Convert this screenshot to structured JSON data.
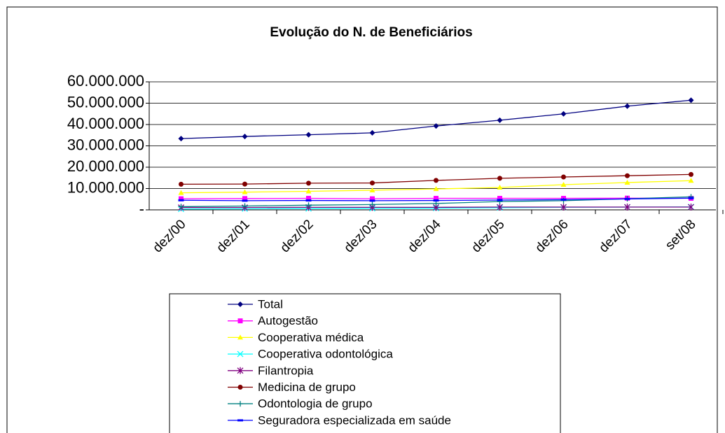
{
  "chart_data": {
    "type": "line",
    "title": "Evolução do N. de Beneficiários",
    "categories": [
      "dez/00",
      "dez/01",
      "dez/02",
      "dez/03",
      "dez/04",
      "dez/05",
      "dez/06",
      "dez/07",
      "set/08"
    ],
    "ylim": [
      0,
      60000000
    ],
    "yticks": [
      {
        "value": 0,
        "label": "-"
      },
      {
        "value": 10000000,
        "label": "10.000.000"
      },
      {
        "value": 20000000,
        "label": "20.000.000"
      },
      {
        "value": 30000000,
        "label": "30.000.000"
      },
      {
        "value": 40000000,
        "label": "40.000.000"
      },
      {
        "value": 50000000,
        "label": "50.000.000"
      },
      {
        "value": 60000000,
        "label": "60.000.000"
      }
    ],
    "grid": true,
    "series": [
      {
        "name": "Total",
        "color": "#000080",
        "marker": "diamond",
        "values": [
          33400000,
          34400000,
          35200000,
          36100000,
          39300000,
          42000000,
          45000000,
          48600000,
          51400000
        ]
      },
      {
        "name": "Autogestão",
        "color": "#ff00ff",
        "marker": "square",
        "values": [
          5200000,
          5300000,
          5400000,
          5200000,
          5400000,
          5400000,
          5400000,
          5500000,
          5400000
        ]
      },
      {
        "name": "Cooperativa médica",
        "color": "#ffff00",
        "marker": "triangle",
        "values": [
          8000000,
          8300000,
          8700000,
          9200000,
          9800000,
          10500000,
          11800000,
          12800000,
          13700000
        ]
      },
      {
        "name": "Cooperativa odontológica",
        "color": "#00ffff",
        "marker": "x",
        "values": [
          400000,
          500000,
          600000,
          700000,
          800000,
          1000000,
          1200000,
          1300000,
          1400000
        ]
      },
      {
        "name": "Filantropia",
        "color": "#800080",
        "marker": "star",
        "values": [
          1100000,
          1100000,
          1200000,
          1200000,
          1200000,
          1300000,
          1300000,
          1300000,
          1300000
        ]
      },
      {
        "name": "Medicina de grupo",
        "color": "#800000",
        "marker": "circle",
        "values": [
          12000000,
          12100000,
          12500000,
          12600000,
          13800000,
          14800000,
          15400000,
          16000000,
          16600000
        ]
      },
      {
        "name": "Odontologia de grupo",
        "color": "#008080",
        "marker": "plus",
        "values": [
          1500000,
          1800000,
          2200000,
          2500000,
          3000000,
          3900000,
          4300000,
          5200000,
          6100000
        ]
      },
      {
        "name": "Seguradora especializada em saúde",
        "color": "#0000ff",
        "marker": "dash",
        "values": [
          4500000,
          4300000,
          4400000,
          4300000,
          4400000,
          4600000,
          4800000,
          5100000,
          5500000
        ]
      }
    ]
  }
}
